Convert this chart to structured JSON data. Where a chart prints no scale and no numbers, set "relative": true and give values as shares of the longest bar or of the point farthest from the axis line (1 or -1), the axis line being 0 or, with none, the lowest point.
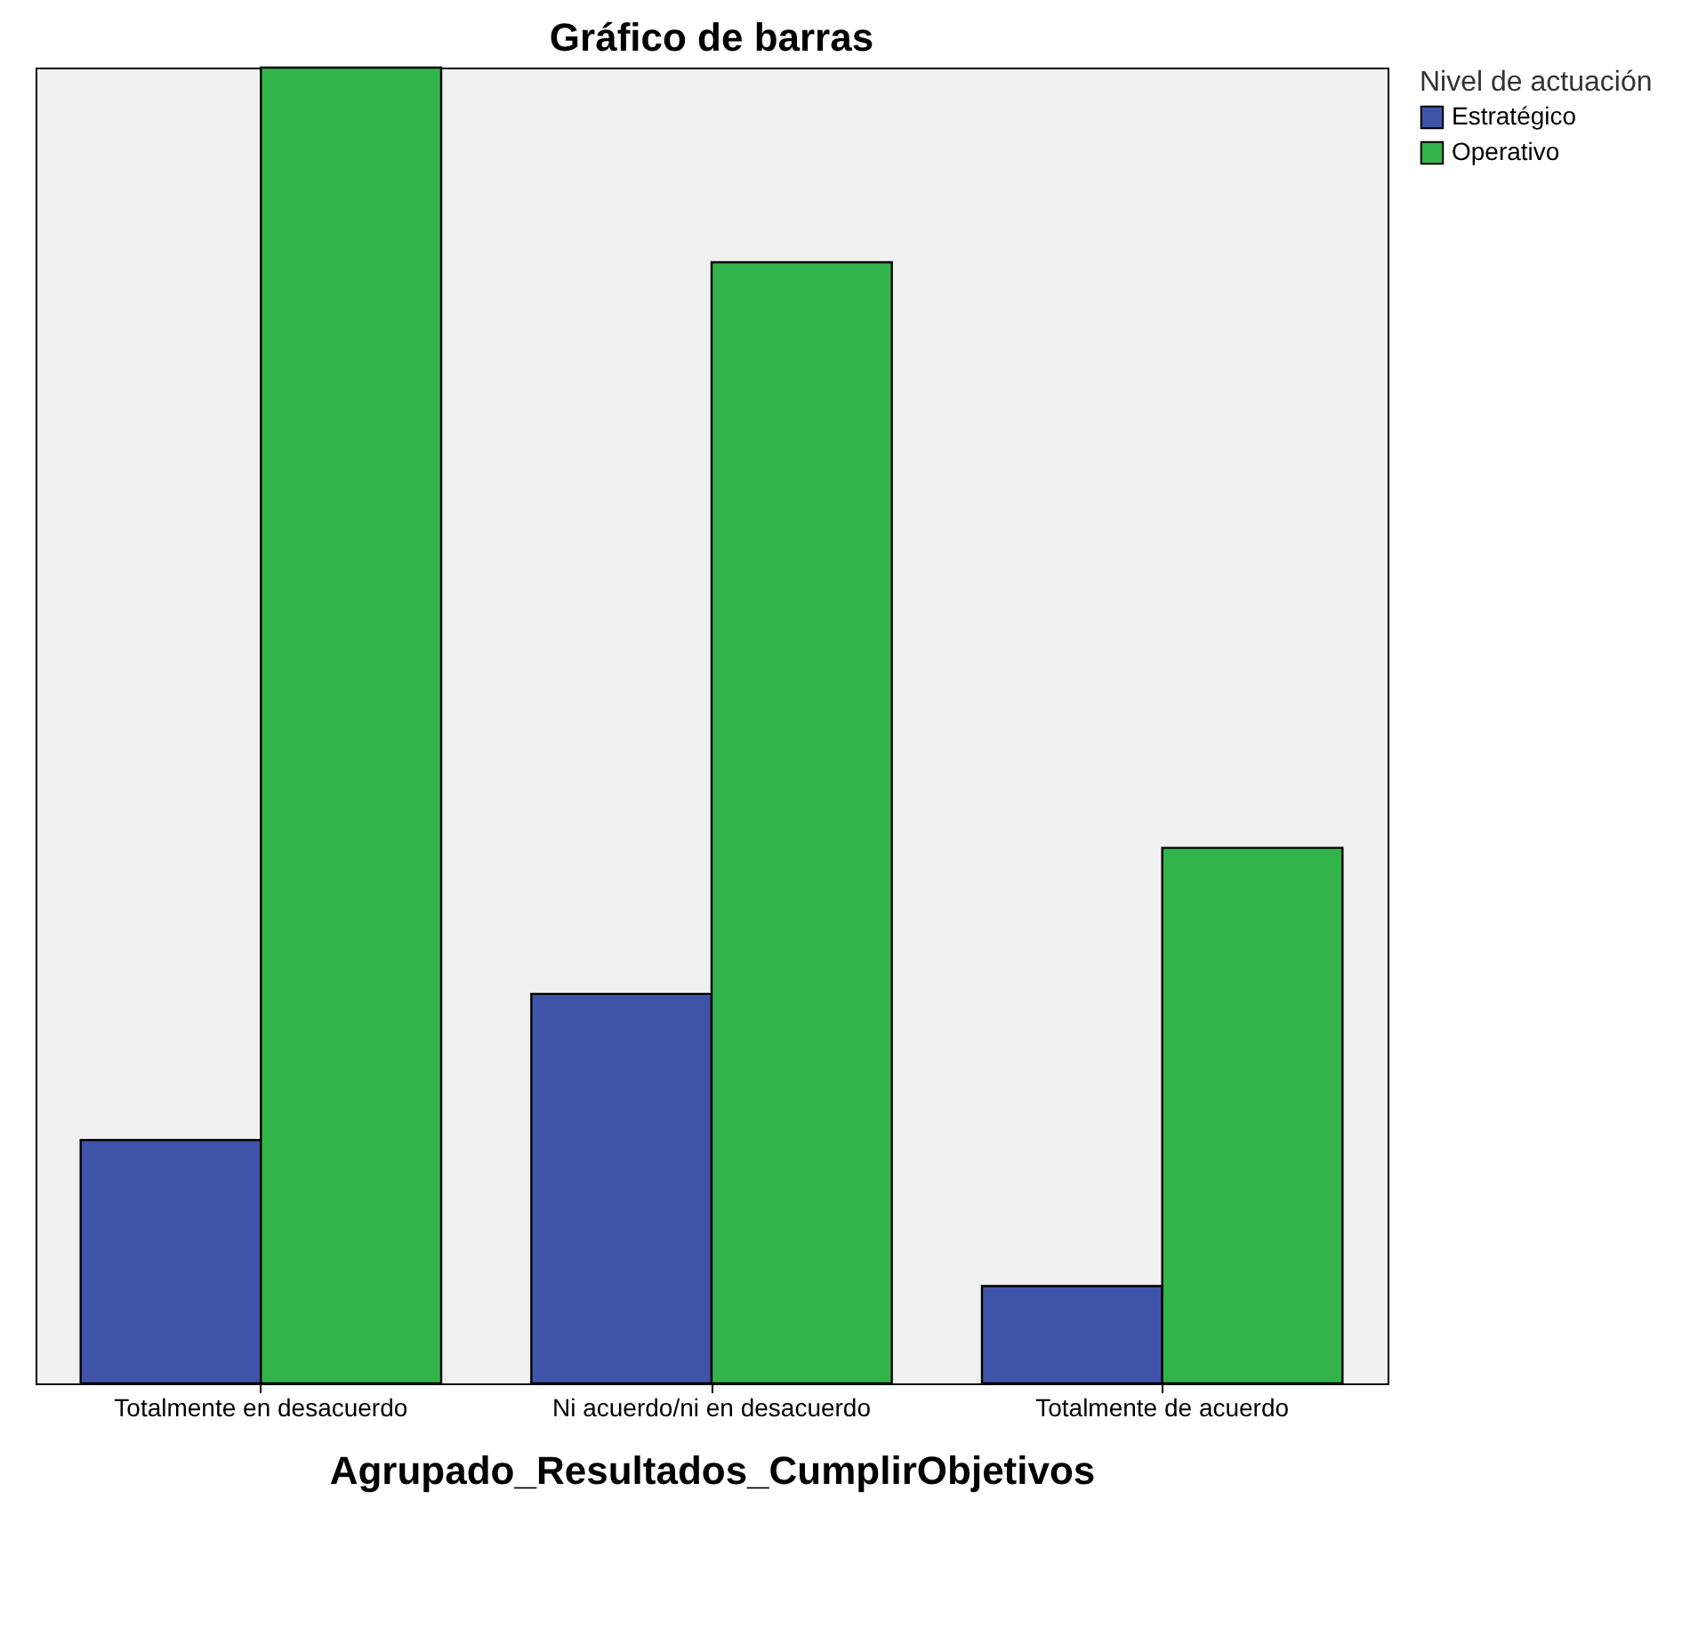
{
  "chart_data": {
    "type": "bar",
    "title": "Gráfico de barras",
    "xlabel": "Agrupado_Resultados_CumplirObjetivos",
    "legend_title": "Nivel de actuación",
    "categories": [
      "Totalmente en desacuerdo",
      "Ni acuerdo/ni en desacuerdo",
      "Totalmente de acuerdo"
    ],
    "relative": true,
    "grid": false,
    "legend": "top right",
    "series": [
      {
        "name": "Estratégico",
        "color": "#3f54a8",
        "values": [
          0.185,
          0.296,
          0.074
        ]
      },
      {
        "name": "Operativo",
        "color": "#33b44a",
        "values": [
          1,
          0.852,
          0.407
        ]
      }
    ]
  }
}
